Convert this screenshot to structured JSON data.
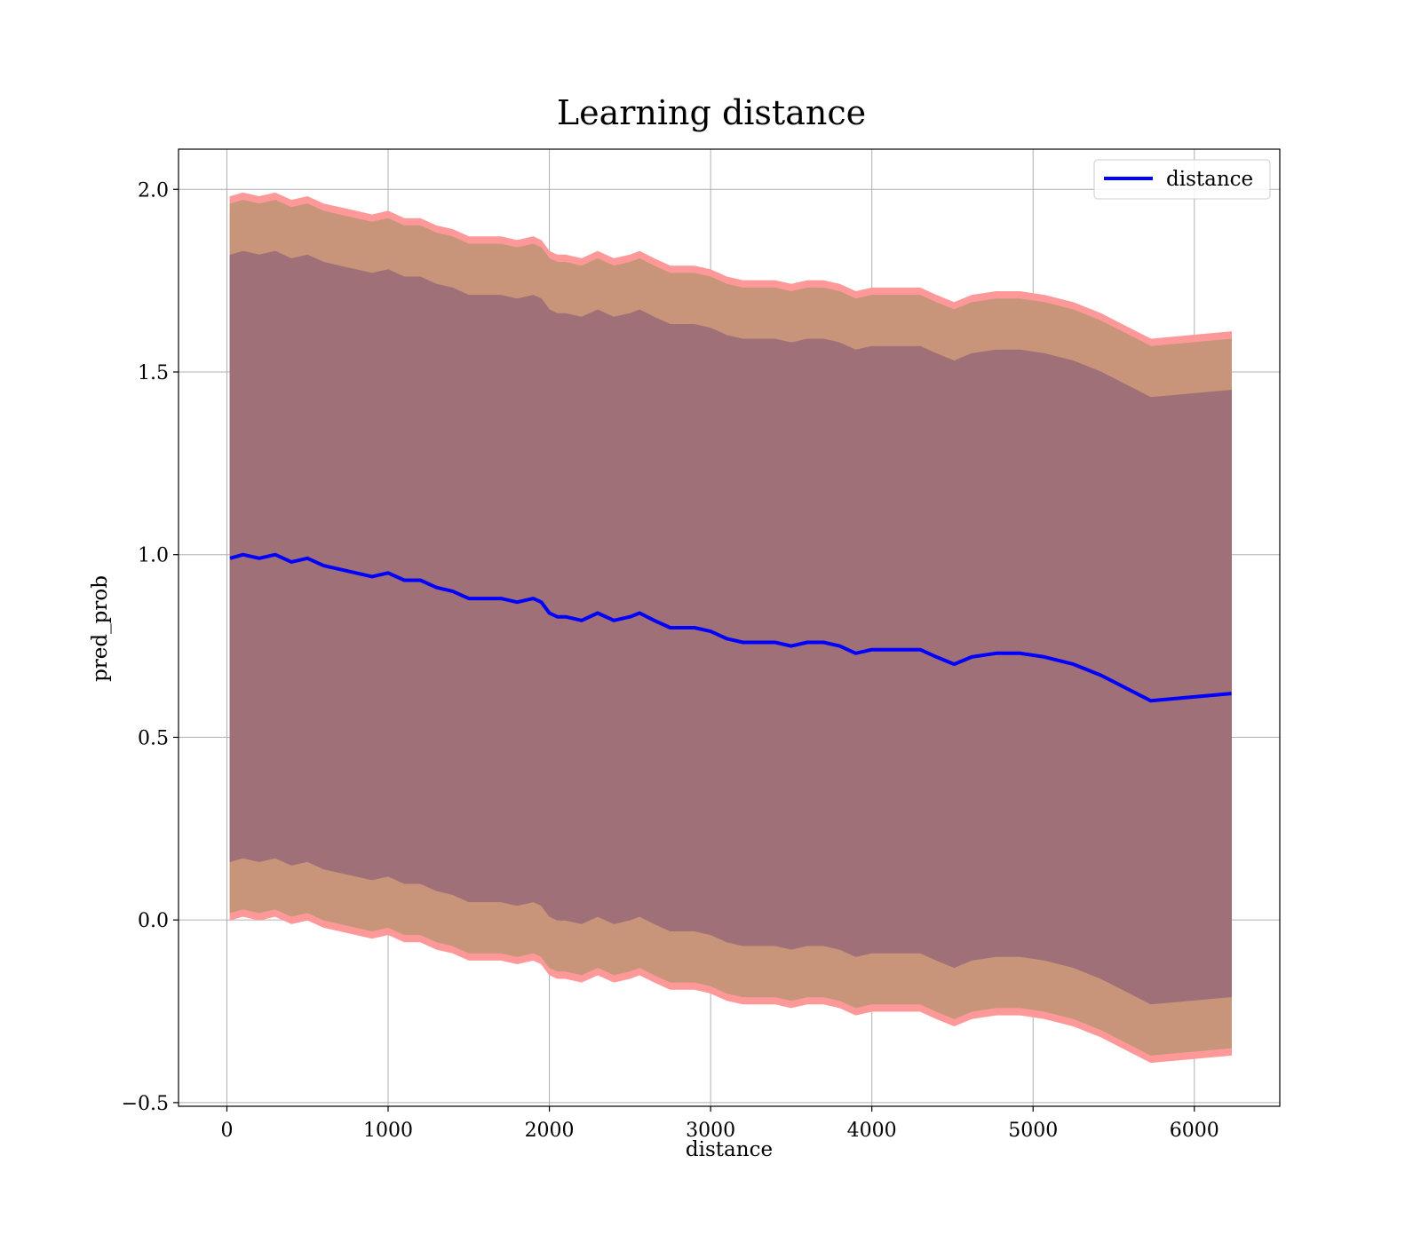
{
  "chart_data": {
    "type": "line",
    "title": "Learning distance",
    "xlabel": "distance",
    "ylabel": "pred_prob",
    "xlim": [
      -300,
      6530
    ],
    "ylim": [
      -0.51,
      2.11
    ],
    "xticks": [
      0,
      1000,
      2000,
      3000,
      4000,
      5000,
      6000
    ],
    "yticks": [
      -0.5,
      0.0,
      0.5,
      1.0,
      1.5,
      2.0
    ],
    "xtick_labels": [
      "0",
      "1000",
      "2000",
      "3000",
      "4000",
      "5000",
      "6000"
    ],
    "ytick_labels": [
      "−0.5",
      "0.0",
      "0.5",
      "1.0",
      "1.5",
      "2.0"
    ],
    "grid": true,
    "legend": {
      "position": "top-right",
      "entries": [
        "distance"
      ]
    },
    "colors": {
      "line": "#0000ff",
      "band_outer": "#ff9999",
      "band_middle": "#c8957a",
      "band_inner": "#a07078"
    },
    "x": [
      20,
      100,
      200,
      300,
      400,
      500,
      600,
      700,
      800,
      900,
      1000,
      1100,
      1200,
      1300,
      1400,
      1500,
      1600,
      1700,
      1800,
      1900,
      1950,
      2000,
      2050,
      2100,
      2200,
      2300,
      2400,
      2500,
      2560,
      2650,
      2750,
      2900,
      3000,
      3100,
      3200,
      3300,
      3400,
      3500,
      3600,
      3700,
      3800,
      3900,
      4000,
      4100,
      4200,
      4300,
      4400,
      4510,
      4620,
      4770,
      4920,
      5070,
      5250,
      5420,
      5730,
      6230
    ],
    "series": [
      {
        "name": "distance",
        "values": [
          0.99,
          1.0,
          0.99,
          1.0,
          0.98,
          0.99,
          0.97,
          0.96,
          0.95,
          0.94,
          0.95,
          0.93,
          0.93,
          0.91,
          0.9,
          0.88,
          0.88,
          0.88,
          0.87,
          0.88,
          0.87,
          0.84,
          0.83,
          0.83,
          0.82,
          0.84,
          0.82,
          0.83,
          0.84,
          0.82,
          0.8,
          0.8,
          0.79,
          0.77,
          0.76,
          0.76,
          0.76,
          0.75,
          0.76,
          0.76,
          0.75,
          0.73,
          0.74,
          0.74,
          0.74,
          0.74,
          0.72,
          0.7,
          0.72,
          0.73,
          0.73,
          0.72,
          0.7,
          0.67,
          0.6,
          0.62
        ]
      }
    ],
    "bands": [
      {
        "name": "outer",
        "half_width": 0.99
      },
      {
        "name": "middle",
        "half_width": 0.97
      },
      {
        "name": "inner",
        "half_width": 0.83
      }
    ]
  }
}
